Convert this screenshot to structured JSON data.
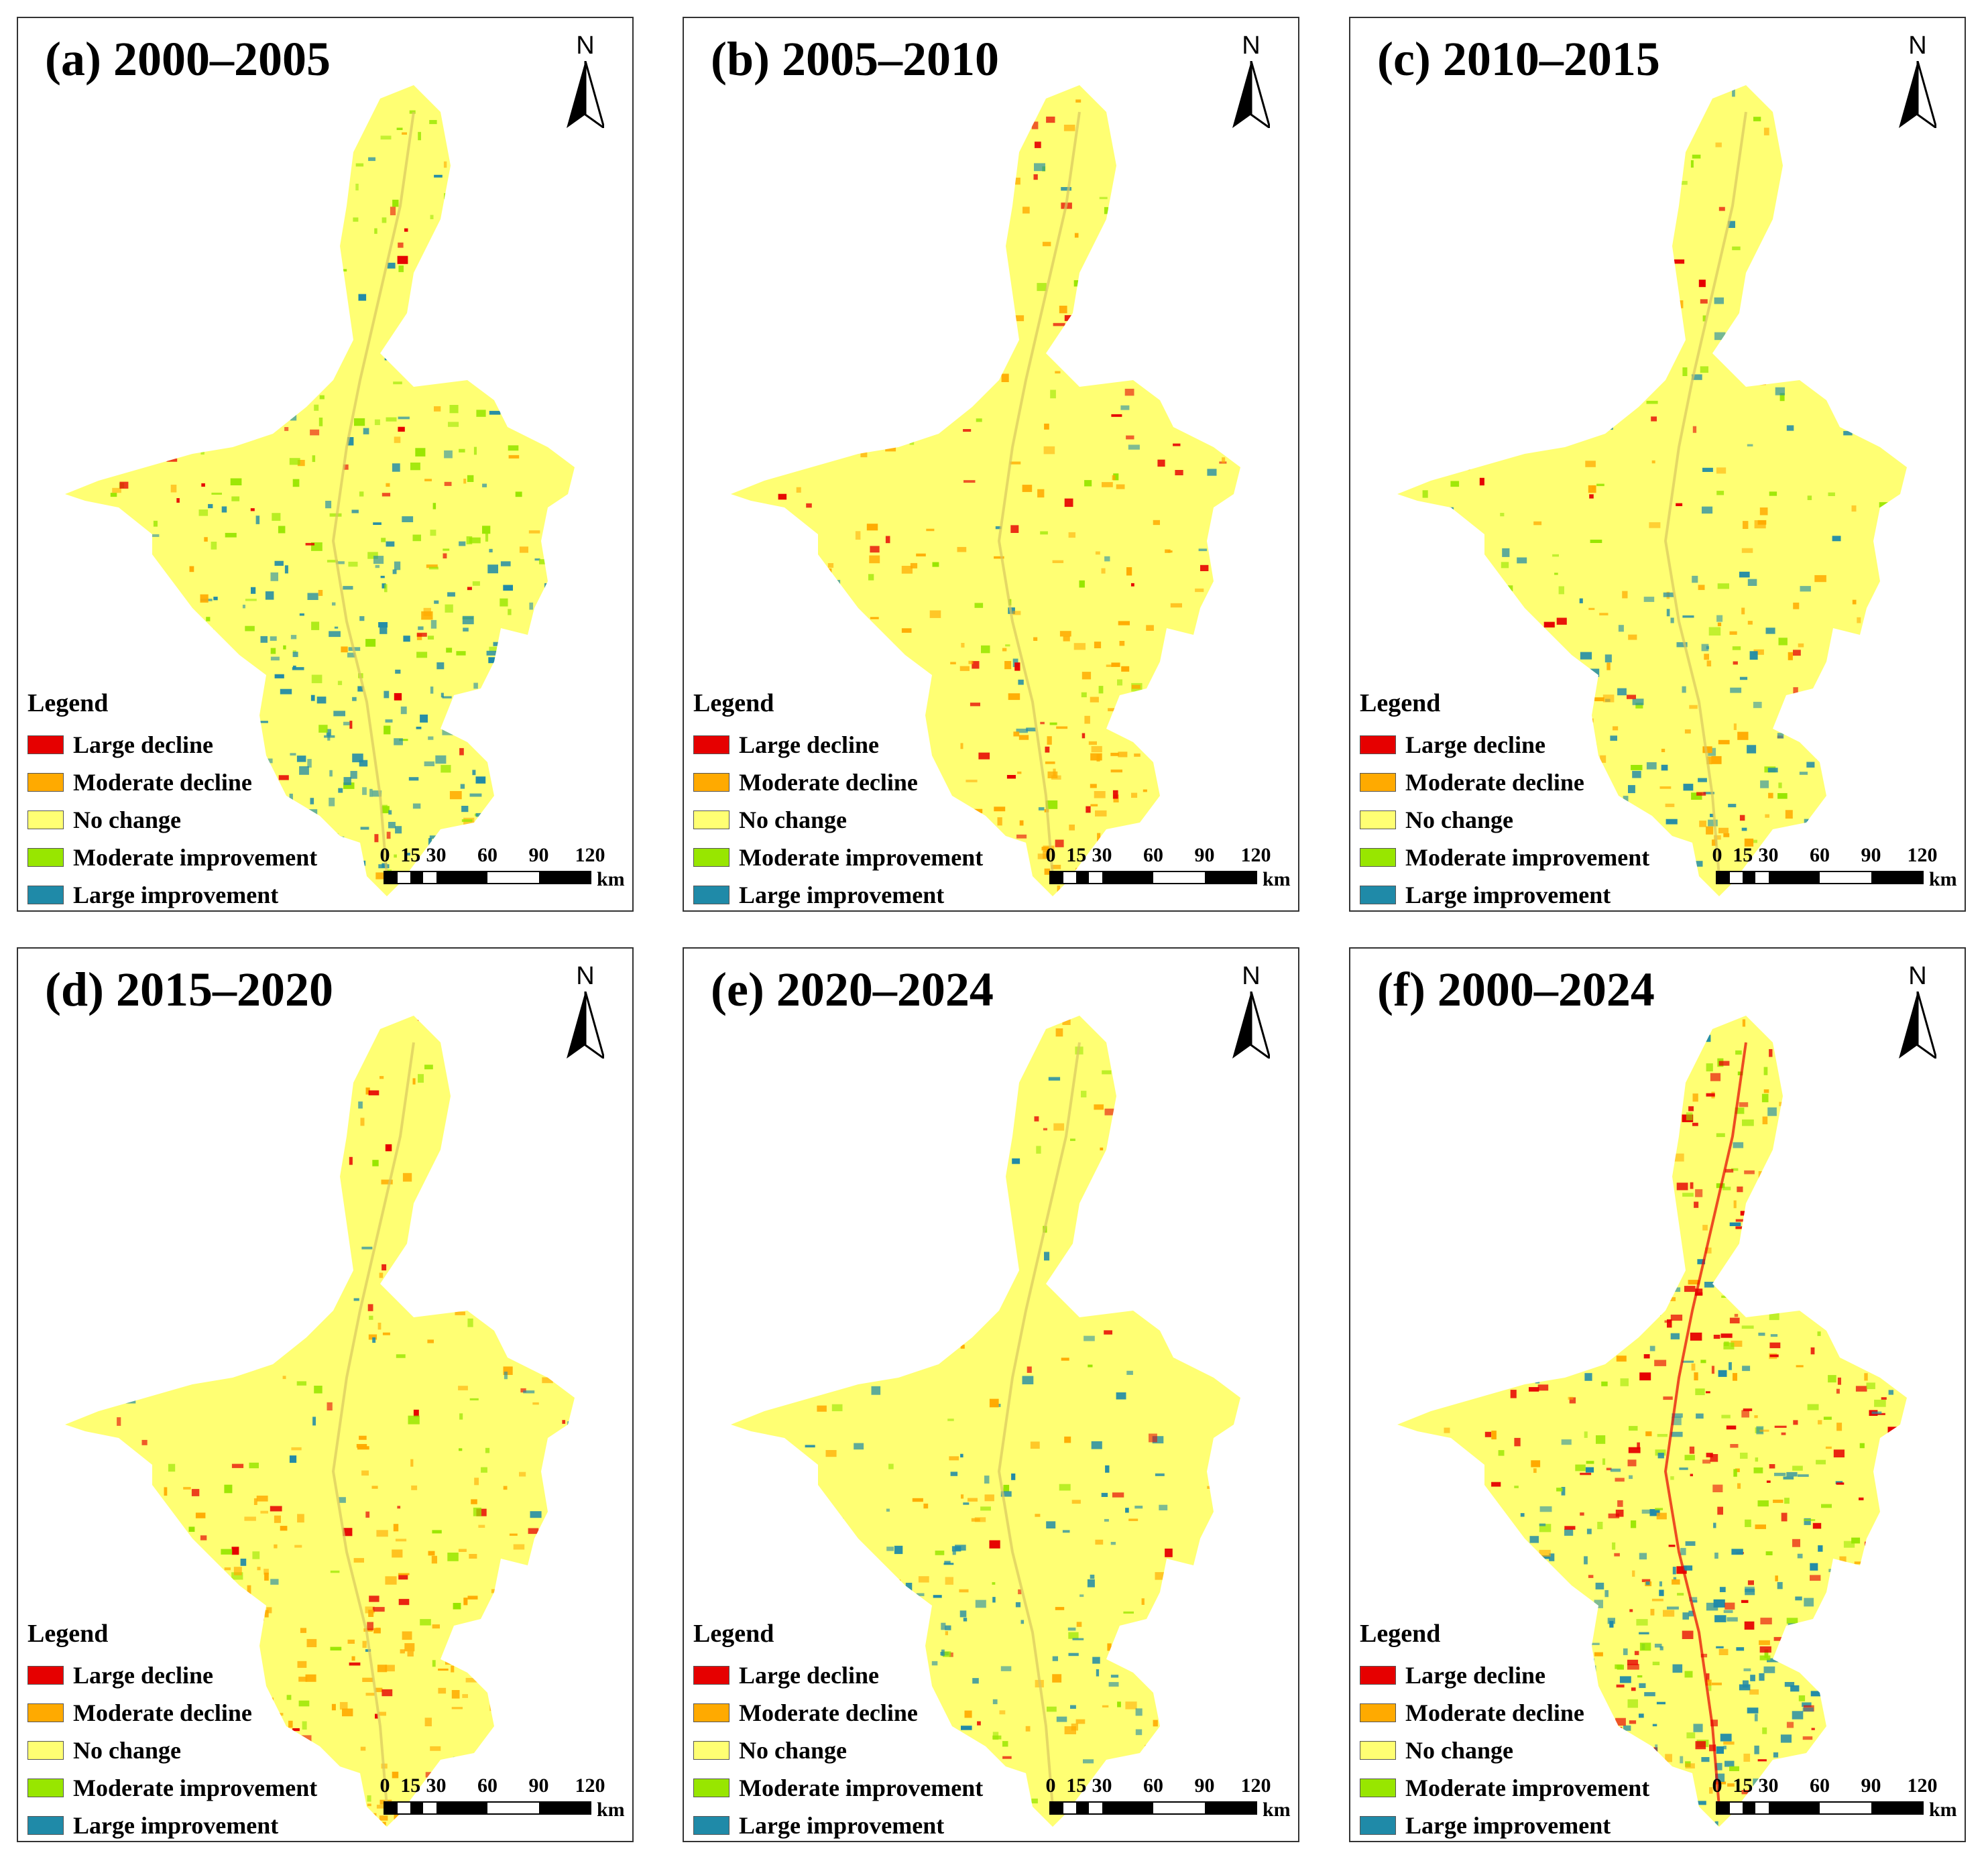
{
  "panels": [
    {
      "title": "(a) 2000–2005",
      "dominant": "mixed-south-blue"
    },
    {
      "title": "(b) 2005–2010",
      "dominant": "mixed-south-orange"
    },
    {
      "title": "(c) 2010–2015",
      "dominant": "mixed-south-lightblue"
    },
    {
      "title": "(d) 2015–2020",
      "dominant": "mixed-south-orange"
    },
    {
      "title": "(e) 2020–2024",
      "dominant": "mixed-south-lightblue"
    },
    {
      "title": "(f) 2000–2024",
      "dominant": "strong"
    }
  ],
  "north_label": "N",
  "legend": {
    "title": "Legend",
    "items": [
      {
        "label": "Large decline",
        "color": "#e60000"
      },
      {
        "label": "Moderate decline",
        "color": "#ffaa00"
      },
      {
        "label": "No change",
        "color": "#ffff73"
      },
      {
        "label": "Moderate improvement",
        "color": "#98e600"
      },
      {
        "label": "Large improvement",
        "color": "#1f8aa8"
      }
    ]
  },
  "scale": {
    "ticks": [
      "0",
      "15",
      "30",
      "60",
      "90",
      "120"
    ],
    "unit": "km"
  }
}
